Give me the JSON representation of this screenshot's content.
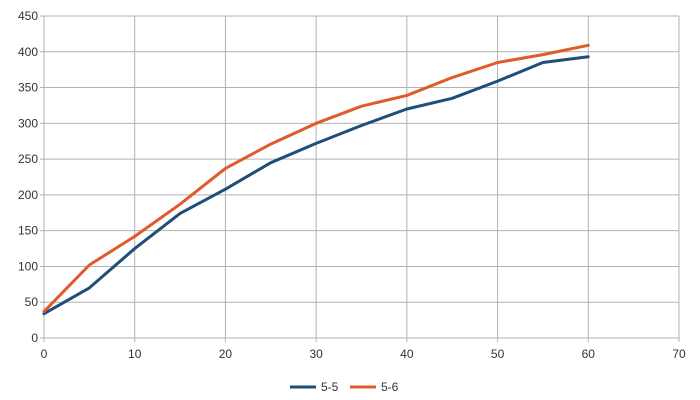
{
  "chart_data": {
    "type": "line",
    "title": "",
    "xlabel": "",
    "ylabel": "",
    "xlim": [
      0,
      70
    ],
    "ylim": [
      0,
      450
    ],
    "x_ticks": [
      0,
      10,
      20,
      30,
      40,
      50,
      60,
      70
    ],
    "y_ticks": [
      0,
      50,
      100,
      150,
      200,
      250,
      300,
      350,
      400,
      450
    ],
    "grid": true,
    "legend_position": "bottom",
    "x": [
      0,
      5,
      10,
      15,
      20,
      25,
      30,
      35,
      40,
      45,
      50,
      55,
      60
    ],
    "series": [
      {
        "name": "5-5",
        "color": "#1f4e79",
        "values": [
          34,
          70,
          125,
          174,
          208,
          245,
          272,
          297,
          320,
          335,
          359,
          385,
          393
        ]
      },
      {
        "name": "5-6",
        "color": "#e05a2b",
        "values": [
          37,
          102,
          142,
          187,
          237,
          271,
          300,
          324,
          339,
          364,
          385,
          396,
          409
        ]
      }
    ]
  }
}
